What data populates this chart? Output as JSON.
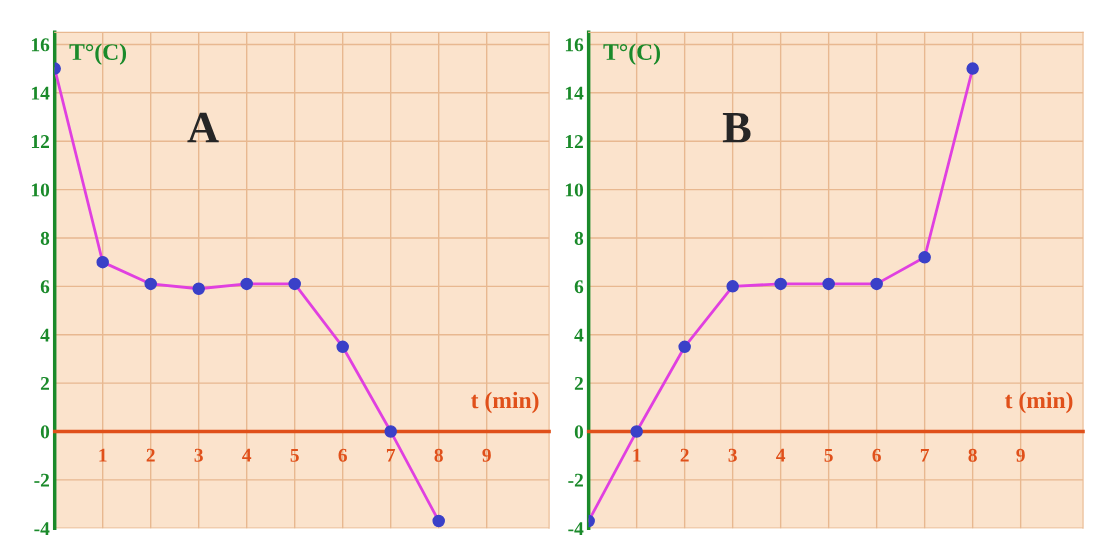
{
  "chart_data": [
    {
      "type": "line",
      "xlabel": "t (min)",
      "ylabel": "T°(C)",
      "annotations": [
        "A"
      ],
      "x": [
        0,
        1,
        2,
        3,
        4,
        5,
        6,
        7,
        8
      ],
      "series": [
        {
          "color": "#e040e0",
          "values": [
            15,
            7,
            6.1,
            5.9,
            6.1,
            6.1,
            3.5,
            0,
            -3.7
          ]
        }
      ],
      "xlim": [
        0,
        10.3
      ],
      "ylim": [
        -4,
        16.5
      ],
      "xticks": [
        1,
        2,
        3,
        4,
        5,
        6,
        7,
        8,
        9
      ],
      "yticks": [
        -4,
        -2,
        0,
        2,
        4,
        6,
        8,
        10,
        12,
        14,
        16
      ],
      "grid": true,
      "marker": "circle",
      "line_style": "solid"
    },
    {
      "type": "line",
      "xlabel": "t (min)",
      "ylabel": "T°(C)",
      "annotations": [
        "B"
      ],
      "x": [
        0,
        1,
        2,
        3,
        4,
        5,
        6,
        7,
        8
      ],
      "series": [
        {
          "color": "#e040e0",
          "values": [
            -3.7,
            0,
            3.5,
            6,
            6.1,
            6.1,
            6.1,
            7.2,
            15
          ]
        }
      ],
      "xlim": [
        0,
        10.3
      ],
      "ylim": [
        -4,
        16.5
      ],
      "xticks": [
        1,
        2,
        3,
        4,
        5,
        6,
        7,
        8,
        9
      ],
      "yticks": [
        -4,
        -2,
        0,
        2,
        4,
        6,
        8,
        10,
        12,
        14,
        16
      ],
      "grid": true,
      "marker": "circle",
      "line_style": "solid"
    }
  ]
}
